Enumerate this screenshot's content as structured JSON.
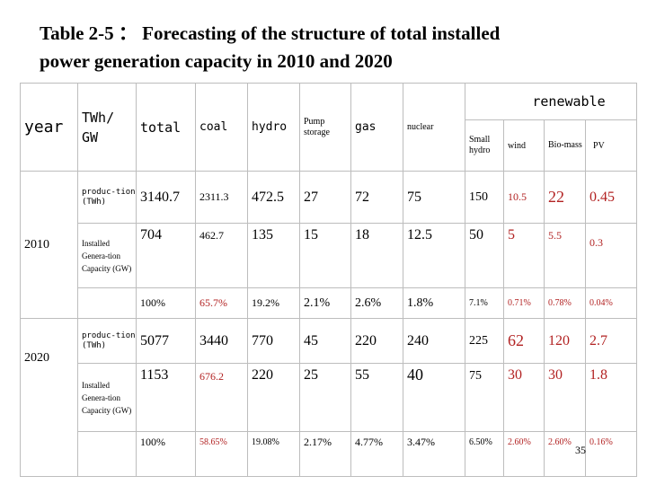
{
  "title": {
    "line1": "Table 2-5 ： Forecasting of the structure of total installed",
    "line2": "power generation capacity in 2010 and 2020"
  },
  "header": {
    "year": "year",
    "unit": "TWh/ GW",
    "total": "total",
    "coal": "coal",
    "hydro": "hydro",
    "pump_storage": "Pump storage",
    "gas": "gas",
    "nuclear": "nuclear",
    "renewable": "renewable",
    "small_hydro": "Small hydro",
    "wind": "wind",
    "biomass": "Bio-mass",
    "pv": "PV"
  },
  "groups": [
    {
      "year": "2010",
      "rows": [
        {
          "label": "produc-tion (TWh)",
          "values": [
            "3140.7",
            "2311.3",
            "472.5",
            "27",
            "72",
            "75",
            "150",
            "10.5",
            "22",
            "0.45"
          ]
        },
        {
          "label": "Installed Genera-tion Capacity (GW)",
          "values": [
            "704",
            "462.7",
            "135",
            "15",
            "18",
            "12.5",
            "50",
            "5",
            "5.5",
            "0.3"
          ]
        },
        {
          "label": "",
          "values": [
            "100%",
            "65.7%",
            "19.2%",
            "2.1%",
            "2.6%",
            "1.8%",
            "7.1%",
            "0.71%",
            "0.78%",
            "0.04%"
          ]
        }
      ]
    },
    {
      "year": "2020",
      "rows": [
        {
          "label": "produc-tion (TWh)",
          "values": [
            "5077",
            "3440",
            "770",
            "45",
            "220",
            "240",
            "225",
            "62",
            "120",
            "2.7"
          ]
        },
        {
          "label": "Installed Genera-tion Capacity (GW)",
          "values": [
            "1153",
            "676.2",
            "220",
            "25",
            "55",
            "40",
            "75",
            "30",
            "30",
            "1.8"
          ]
        },
        {
          "label": "",
          "values": [
            "100%",
            "58.65%",
            "19.08%",
            "2.17%",
            "4.77%",
            "3.47%",
            "6.50%",
            "2.60%",
            "2.60%",
            "0.16%"
          ]
        }
      ]
    }
  ],
  "page_number": "35",
  "colors": {
    "renewable_values": "#b22222",
    "text": "#000000",
    "border": "#bdbdbd"
  }
}
